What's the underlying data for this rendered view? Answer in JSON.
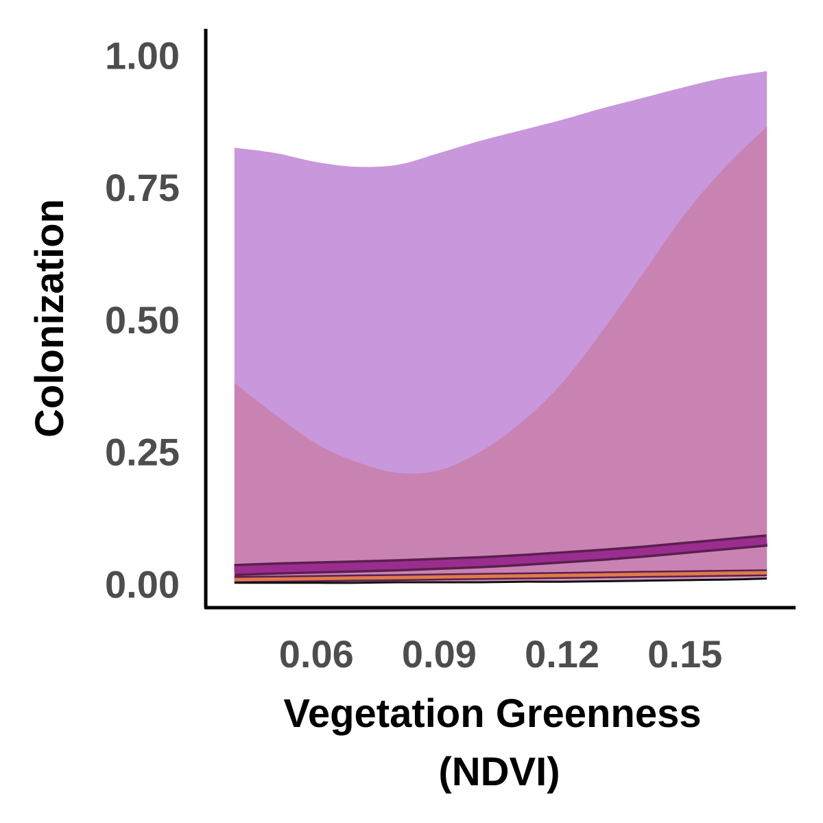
{
  "chart_data": {
    "type": "area",
    "title": "",
    "xlabel_lines": [
      "Vegetation Greenness",
      "(NDVI)"
    ],
    "ylabel": "Colonization",
    "xlim": [
      0.033,
      0.177
    ],
    "ylim": [
      -0.045,
      1.05
    ],
    "xticks": [
      0.06,
      0.09,
      0.12,
      0.15
    ],
    "xtick_labels": [
      "0.06",
      "0.09",
      "0.12",
      "0.15"
    ],
    "yticks": [
      0.0,
      0.25,
      0.5,
      0.75,
      1.0
    ],
    "ytick_labels": [
      "0.00",
      "0.25",
      "0.50",
      "0.75",
      "1.00"
    ],
    "grid": false,
    "legend": "none",
    "x": [
      0.04,
      0.05,
      0.06,
      0.07,
      0.08,
      0.09,
      0.1,
      0.11,
      0.12,
      0.13,
      0.14,
      0.15,
      0.16,
      0.17
    ],
    "series": [
      {
        "color": "#c997dc",
        "lower": [
          0.013,
          0.013,
          0.014,
          0.014,
          0.015,
          0.015,
          0.016,
          0.017,
          0.018,
          0.019,
          0.021,
          0.023,
          0.025,
          0.027
        ],
        "upper": [
          0.825,
          0.815,
          0.798,
          0.789,
          0.793,
          0.815,
          0.838,
          0.858,
          0.878,
          0.9,
          0.92,
          0.94,
          0.958,
          0.97
        ],
        "mean": [
          0.026,
          0.029,
          0.031,
          0.033,
          0.035,
          0.038,
          0.041,
          0.045,
          0.05,
          0.055,
          0.061,
          0.068,
          0.075,
          0.082
        ],
        "line_color": "#9b2d8f"
      },
      {
        "color": "#c97fa8",
        "lower": [
          0.002,
          0.002,
          0.002,
          0.002,
          0.003,
          0.003,
          0.003,
          0.004,
          0.004,
          0.005,
          0.006,
          0.007,
          0.008,
          0.01
        ],
        "upper": [
          0.38,
          0.32,
          0.265,
          0.23,
          0.21,
          0.215,
          0.25,
          0.305,
          0.38,
          0.48,
          0.59,
          0.7,
          0.79,
          0.865
        ],
        "mean": [
          0.008,
          0.009,
          0.01,
          0.011,
          0.012,
          0.013,
          0.014,
          0.015,
          0.016,
          0.017,
          0.018,
          0.019,
          0.02,
          0.021
        ],
        "line_color": "#e07a4a"
      }
    ]
  }
}
